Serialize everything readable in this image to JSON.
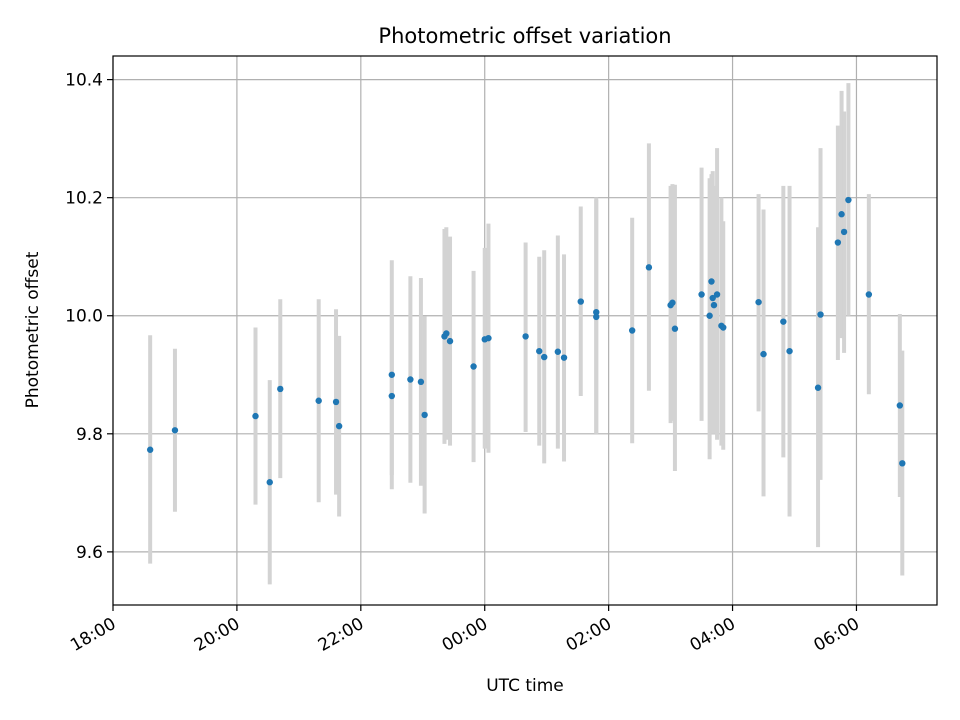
{
  "chart_data": {
    "type": "scatter",
    "title": "Photometric offset variation",
    "xlabel": "UTC time",
    "ylabel": "Photometric offset",
    "x_unit": "hours relative to 00:00 UTC",
    "xlim": [
      -6.0,
      7.3
    ],
    "ylim": [
      9.51,
      10.44
    ],
    "x_ticks": [
      {
        "value": -6,
        "label": "18:00"
      },
      {
        "value": -4,
        "label": "20:00"
      },
      {
        "value": -2,
        "label": "22:00"
      },
      {
        "value": 0,
        "label": "00:00"
      },
      {
        "value": 2,
        "label": "02:00"
      },
      {
        "value": 4,
        "label": "04:00"
      },
      {
        "value": 6,
        "label": "06:00"
      }
    ],
    "y_ticks": [
      {
        "value": 9.6,
        "label": "9.6"
      },
      {
        "value": 9.8,
        "label": "9.8"
      },
      {
        "value": 10.0,
        "label": "10.0"
      },
      {
        "value": 10.2,
        "label": "10.2"
      },
      {
        "value": 10.4,
        "label": "10.4"
      }
    ],
    "grid": true,
    "point_color": "#1f77b4",
    "errorbar_color": "#d3d3d3",
    "points": [
      {
        "x": -5.4,
        "y": 9.773,
        "ylo": 9.58,
        "yhi": 9.967
      },
      {
        "x": -5.0,
        "y": 9.806,
        "ylo": 9.668,
        "yhi": 9.944
      },
      {
        "x": -3.7,
        "y": 9.83,
        "ylo": 9.68,
        "yhi": 9.98
      },
      {
        "x": -3.47,
        "y": 9.718,
        "ylo": 9.545,
        "yhi": 9.891
      },
      {
        "x": -3.3,
        "y": 9.876,
        "ylo": 9.725,
        "yhi": 10.028
      },
      {
        "x": -2.68,
        "y": 9.856,
        "ylo": 9.684,
        "yhi": 10.028
      },
      {
        "x": -2.4,
        "y": 9.854,
        "ylo": 9.697,
        "yhi": 10.011
      },
      {
        "x": -2.35,
        "y": 9.813,
        "ylo": 9.66,
        "yhi": 9.966
      },
      {
        "x": -1.5,
        "y": 9.9,
        "ylo": 9.706,
        "yhi": 10.094
      },
      {
        "x": -1.5,
        "y": 9.864,
        "ylo": 9.73,
        "yhi": 9.998
      },
      {
        "x": -1.2,
        "y": 9.892,
        "ylo": 9.717,
        "yhi": 10.067
      },
      {
        "x": -1.03,
        "y": 9.888,
        "ylo": 9.712,
        "yhi": 10.064
      },
      {
        "x": -0.97,
        "y": 9.832,
        "ylo": 9.665,
        "yhi": 9.999
      },
      {
        "x": -0.65,
        "y": 9.965,
        "ylo": 9.783,
        "yhi": 10.147
      },
      {
        "x": -0.62,
        "y": 9.97,
        "ylo": 9.79,
        "yhi": 10.15
      },
      {
        "x": -0.56,
        "y": 9.957,
        "ylo": 9.78,
        "yhi": 10.134
      },
      {
        "x": -0.18,
        "y": 9.914,
        "ylo": 9.752,
        "yhi": 10.076
      },
      {
        "x": 0.0,
        "y": 9.96,
        "ylo": 9.775,
        "yhi": 10.115
      },
      {
        "x": 0.06,
        "y": 9.962,
        "ylo": 9.768,
        "yhi": 10.156
      },
      {
        "x": 0.66,
        "y": 9.965,
        "ylo": 9.803,
        "yhi": 10.124
      },
      {
        "x": 0.88,
        "y": 9.94,
        "ylo": 9.78,
        "yhi": 10.1
      },
      {
        "x": 0.96,
        "y": 9.93,
        "ylo": 9.75,
        "yhi": 10.111
      },
      {
        "x": 1.18,
        "y": 9.939,
        "ylo": 9.775,
        "yhi": 10.136
      },
      {
        "x": 1.28,
        "y": 9.929,
        "ylo": 9.753,
        "yhi": 10.104
      },
      {
        "x": 1.55,
        "y": 10.024,
        "ylo": 9.864,
        "yhi": 10.185
      },
      {
        "x": 1.8,
        "y": 10.006,
        "ylo": 9.8,
        "yhi": 10.2
      },
      {
        "x": 1.8,
        "y": 9.998,
        "ylo": 9.8,
        "yhi": 10.196
      },
      {
        "x": 2.38,
        "y": 9.975,
        "ylo": 9.784,
        "yhi": 10.166
      },
      {
        "x": 2.65,
        "y": 10.082,
        "ylo": 9.873,
        "yhi": 10.292
      },
      {
        "x": 3.0,
        "y": 10.018,
        "ylo": 9.818,
        "yhi": 10.22
      },
      {
        "x": 3.03,
        "y": 10.022,
        "ylo": 9.822,
        "yhi": 10.223
      },
      {
        "x": 3.07,
        "y": 9.978,
        "ylo": 9.737,
        "yhi": 10.222
      },
      {
        "x": 3.5,
        "y": 10.036,
        "ylo": 9.822,
        "yhi": 10.251
      },
      {
        "x": 3.63,
        "y": 10.0,
        "ylo": 9.757,
        "yhi": 10.233
      },
      {
        "x": 3.66,
        "y": 10.058,
        "ylo": 9.83,
        "yhi": 10.24
      },
      {
        "x": 3.68,
        "y": 10.03,
        "ylo": 9.8,
        "yhi": 10.245
      },
      {
        "x": 3.7,
        "y": 10.018,
        "ylo": 9.8,
        "yhi": 10.22
      },
      {
        "x": 3.75,
        "y": 10.036,
        "ylo": 9.79,
        "yhi": 10.284
      },
      {
        "x": 3.82,
        "y": 9.983,
        "ylo": 9.78,
        "yhi": 10.2
      },
      {
        "x": 3.85,
        "y": 9.98,
        "ylo": 9.773,
        "yhi": 10.16
      },
      {
        "x": 4.42,
        "y": 10.023,
        "ylo": 9.838,
        "yhi": 10.206
      },
      {
        "x": 4.5,
        "y": 9.935,
        "ylo": 9.694,
        "yhi": 10.18
      },
      {
        "x": 4.82,
        "y": 9.99,
        "ylo": 9.76,
        "yhi": 10.22
      },
      {
        "x": 4.92,
        "y": 9.94,
        "ylo": 9.66,
        "yhi": 10.22
      },
      {
        "x": 5.38,
        "y": 9.878,
        "ylo": 9.608,
        "yhi": 10.15
      },
      {
        "x": 5.42,
        "y": 10.002,
        "ylo": 9.722,
        "yhi": 10.284
      },
      {
        "x": 5.7,
        "y": 10.124,
        "ylo": 9.925,
        "yhi": 10.322
      },
      {
        "x": 5.76,
        "y": 10.172,
        "ylo": 9.962,
        "yhi": 10.381
      },
      {
        "x": 5.8,
        "y": 10.142,
        "ylo": 9.937,
        "yhi": 10.346
      },
      {
        "x": 5.87,
        "y": 10.196,
        "ylo": 10.0,
        "yhi": 10.394
      },
      {
        "x": 6.2,
        "y": 10.036,
        "ylo": 9.867,
        "yhi": 10.206
      },
      {
        "x": 6.7,
        "y": 9.848,
        "ylo": 9.693,
        "yhi": 10.003
      },
      {
        "x": 6.74,
        "y": 9.75,
        "ylo": 9.56,
        "yhi": 9.941
      }
    ]
  }
}
